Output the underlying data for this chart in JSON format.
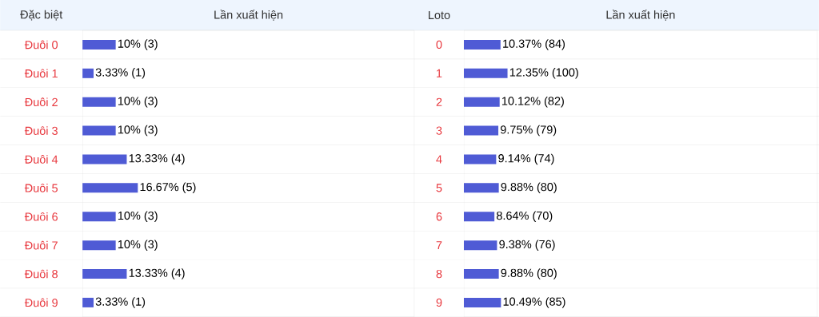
{
  "chart_data": [
    {
      "type": "bar",
      "orientation": "horizontal",
      "ylabel": "Đặc biệt",
      "xlabel": "Lần xuất hiện",
      "tick_labels": "y",
      "color": "#4f5bd5",
      "xlim": [
        0,
        100
      ],
      "categories": [
        "Đuôi 0",
        "Đuôi 1",
        "Đuôi 2",
        "Đuôi 3",
        "Đuôi 4",
        "Đuôi 5",
        "Đuôi 6",
        "Đuôi 7",
        "Đuôi 8",
        "Đuôi 9"
      ],
      "values": [
        10,
        3.33,
        10,
        10,
        13.33,
        16.67,
        10,
        10,
        13.33,
        3.33
      ],
      "value_labels": [
        "10% (3)",
        "3.33% (1)",
        "10% (3)",
        "10% (3)",
        "13.33% (4)",
        "16.67% (5)",
        "10% (3)",
        "10% (3)",
        "13.33% (4)",
        "3.33% (1)"
      ]
    },
    {
      "type": "bar",
      "orientation": "horizontal",
      "ylabel": "Loto",
      "xlabel": "Lần xuất hiện",
      "tick_labels": "y",
      "color": "#4f5bd5",
      "xlim": [
        0,
        100
      ],
      "categories": [
        "0",
        "1",
        "2",
        "3",
        "4",
        "5",
        "6",
        "7",
        "8",
        "9"
      ],
      "values": [
        10.37,
        12.35,
        10.12,
        9.75,
        9.14,
        9.88,
        8.64,
        9.38,
        9.88,
        10.49
      ],
      "value_labels": [
        "10.37% (84)",
        "12.35% (100)",
        "10.12% (82)",
        "9.75% (79)",
        "9.14% (74)",
        "9.88% (80)",
        "8.64% (70)",
        "9.38% (76)",
        "9.88% (80)",
        "10.49% (85)"
      ]
    }
  ]
}
